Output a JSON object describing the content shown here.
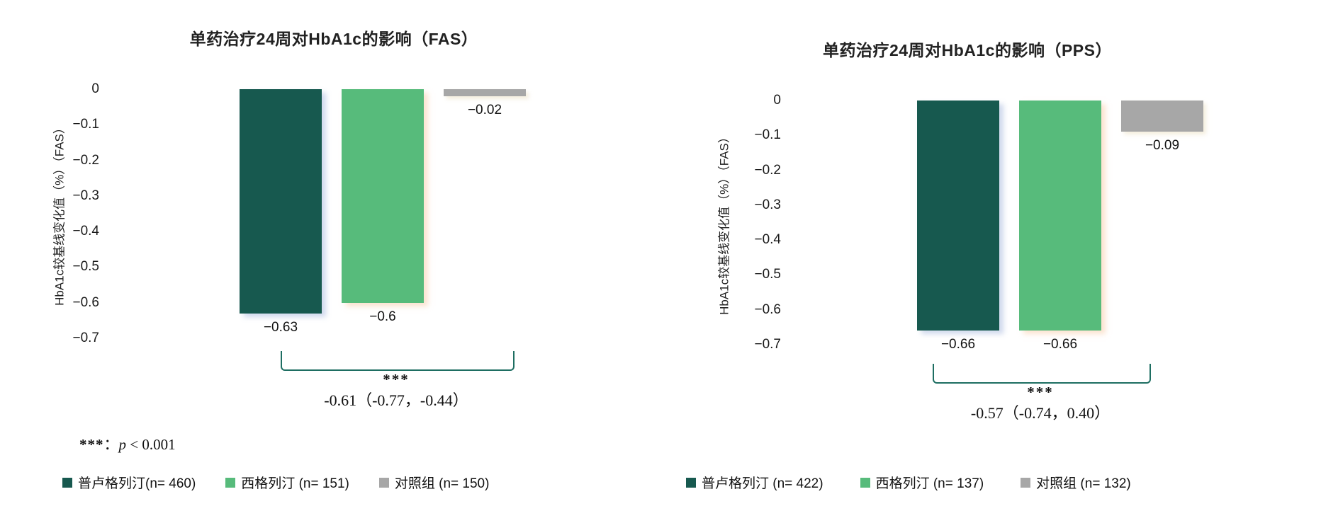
{
  "chart_data": [
    {
      "type": "bar",
      "title": "单药治疗24周对HbA1c的影响（FAS）",
      "ylabel": "HbA1c较基线变化值（%）（FAS）",
      "xlabel": "",
      "ylim": [
        0,
        -0.7
      ],
      "grid": false,
      "legend_position": "bottom",
      "yticks": [
        "0",
        "−0.1",
        "−0.2",
        "−0.3",
        "−0.4",
        "−0.5",
        "−0.6",
        "−0.7"
      ],
      "series": [
        {
          "name": "普卢格列汀(n= 460)",
          "value": -0.63,
          "label": "−0.63",
          "color": "#17594F"
        },
        {
          "name": "西格列汀 (n= 151)",
          "value": -0.6,
          "label": "−0.6",
          "color": "#57BB7B"
        },
        {
          "name": "对照组 (n= 150)",
          "value": -0.02,
          "label": "−0.02",
          "color": "#A7A7A7"
        }
      ],
      "comparison": {
        "stars": "***",
        "ci": "-0.61（-0.77，-0.44）"
      }
    },
    {
      "type": "bar",
      "title": "单药治疗24周对HbA1c的影响（PPS）",
      "ylabel": "HbA1c较基线变化值（%）（FAS）",
      "xlabel": "",
      "ylim": [
        0,
        -0.7
      ],
      "grid": false,
      "legend_position": "bottom",
      "yticks": [
        "0",
        "−0.1",
        "−0.2",
        "−0.3",
        "−0.4",
        "−0.5",
        "−0.6",
        "−0.7"
      ],
      "series": [
        {
          "name": "普卢格列汀 (n= 422)",
          "value": -0.66,
          "label": "−0.66",
          "color": "#17594F"
        },
        {
          "name": "西格列汀 (n= 137)",
          "value": -0.66,
          "label": "−0.66",
          "color": "#57BB7B"
        },
        {
          "name": "对照组 (n= 132)",
          "value": -0.09,
          "label": "−0.09",
          "color": "#A7A7A7"
        }
      ],
      "comparison": {
        "stars": "***",
        "ci": "-0.57（-0.74，0.40）"
      }
    }
  ],
  "footnote": {
    "stars": "***",
    "colon": "：",
    "p": "p",
    "rest": " < 0.001"
  },
  "colors": {
    "pluogliptin_bar": "#17594F",
    "sitagliptin_bar": "#57BB7B",
    "control_bar": "#A7A7A7",
    "bracket": "#1E6E62",
    "background": "#FFFFFF"
  }
}
